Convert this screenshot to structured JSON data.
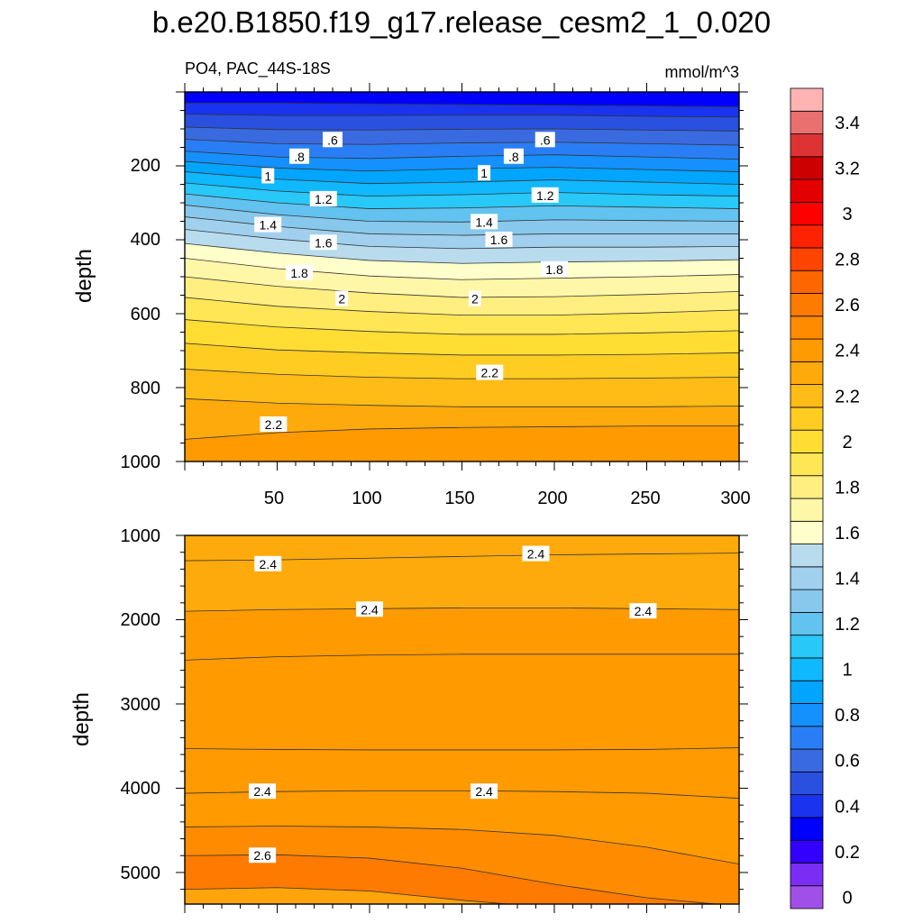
{
  "title": "b.e20.B1850.f19_g17.release_cesm2_1_0.020",
  "subtitle_left": "PO4, PAC_44S-18S",
  "subtitle_right": "mmol/m^3",
  "chart_data": [
    {
      "type": "heatmap",
      "panel": "upper",
      "variable": "PO4",
      "region": "PAC_44S-18S",
      "units": "mmol/m^3",
      "xlabel": "",
      "ylabel": "depth",
      "xlim": [
        0,
        300
      ],
      "ylim": [
        1000,
        0
      ],
      "yticks": [
        200,
        400,
        600,
        800,
        1000
      ],
      "xticks": [
        50,
        100,
        150,
        200,
        250,
        300
      ],
      "contour_depths": [
        {
          "level": 0.4,
          "depths": [
            30,
            30,
            32,
            34,
            36,
            38,
            40
          ]
        },
        {
          "level": 0.5,
          "depths": [
            60,
            64,
            64,
            63,
            63,
            66,
            68
          ]
        },
        {
          "level": 0.6,
          "depths": [
            95,
            102,
            103,
            101,
            100,
            103,
            106
          ]
        },
        {
          "level": 0.7,
          "depths": [
            128,
            140,
            142,
            138,
            136,
            140,
            144
          ]
        },
        {
          "level": 0.8,
          "depths": [
            160,
            176,
            180,
            174,
            170,
            176,
            182
          ]
        },
        {
          "level": 0.9,
          "depths": [
            188,
            206,
            214,
            208,
            204,
            210,
            216
          ]
        },
        {
          "level": 1.0,
          "depths": [
            216,
            236,
            248,
            244,
            238,
            244,
            250
          ]
        },
        {
          "level": 1.1,
          "depths": [
            246,
            268,
            282,
            278,
            272,
            278,
            282
          ]
        },
        {
          "level": 1.2,
          "depths": [
            276,
            300,
            316,
            314,
            308,
            312,
            316
          ]
        },
        {
          "level": 1.3,
          "depths": [
            306,
            332,
            350,
            352,
            346,
            348,
            350
          ]
        },
        {
          "level": 1.4,
          "depths": [
            338,
            364,
            384,
            388,
            384,
            384,
            384
          ]
        },
        {
          "level": 1.5,
          "depths": [
            372,
            398,
            418,
            424,
            420,
            420,
            418
          ]
        },
        {
          "level": 1.6,
          "depths": [
            410,
            436,
            456,
            464,
            460,
            458,
            454
          ]
        },
        {
          "level": 1.7,
          "depths": [
            450,
            478,
            498,
            508,
            504,
            500,
            494
          ]
        },
        {
          "level": 1.8,
          "depths": [
            500,
            526,
            544,
            556,
            554,
            548,
            540
          ]
        },
        {
          "level": 1.9,
          "depths": [
            556,
            580,
            594,
            604,
            604,
            598,
            590
          ]
        },
        {
          "level": 2.0,
          "depths": [
            616,
            636,
            648,
            656,
            656,
            652,
            646
          ]
        },
        {
          "level": 2.1,
          "depths": [
            680,
            698,
            706,
            712,
            712,
            710,
            706
          ]
        },
        {
          "level": 2.2,
          "depths": [
            750,
            764,
            772,
            776,
            776,
            774,
            772
          ]
        },
        {
          "level": 2.3,
          "depths": [
            830,
            842,
            848,
            852,
            852,
            852,
            850
          ]
        },
        {
          "level": 2.4,
          "depths": [
            940,
            922,
            912,
            908,
            906,
            904,
            904
          ]
        },
        {
          "level": 2.5,
          "depths": [
            1010,
            1010,
            1010,
            1010,
            1010,
            1010,
            1010
          ]
        }
      ],
      "contour_x": [
        0,
        50,
        100,
        150,
        200,
        250,
        300
      ],
      "contour_labels": [
        {
          "x": 80,
          "depth": 130,
          "text": ".6"
        },
        {
          "x": 195,
          "depth": 130,
          "text": ".6"
        },
        {
          "x": 62,
          "depth": 175,
          "text": ".8"
        },
        {
          "x": 178,
          "depth": 175,
          "text": ".8"
        },
        {
          "x": 45,
          "depth": 228,
          "text": "1"
        },
        {
          "x": 162,
          "depth": 220,
          "text": "1"
        },
        {
          "x": 75,
          "depth": 290,
          "text": "1.2"
        },
        {
          "x": 195,
          "depth": 280,
          "text": "1.2"
        },
        {
          "x": 45,
          "depth": 360,
          "text": "1.4"
        },
        {
          "x": 162,
          "depth": 352,
          "text": "1.4"
        },
        {
          "x": 75,
          "depth": 408,
          "text": "1.6"
        },
        {
          "x": 170,
          "depth": 400,
          "text": "1.6"
        },
        {
          "x": 62,
          "depth": 490,
          "text": "1.8"
        },
        {
          "x": 200,
          "depth": 480,
          "text": "1.8"
        },
        {
          "x": 85,
          "depth": 560,
          "text": "2"
        },
        {
          "x": 157,
          "depth": 560,
          "text": "2"
        },
        {
          "x": 48,
          "depth": 900,
          "text": "2.2"
        },
        {
          "x": 165,
          "depth": 760,
          "text": "2.2"
        }
      ]
    },
    {
      "type": "heatmap",
      "panel": "lower",
      "variable": "PO4",
      "region": "PAC_44S-18S",
      "units": "mmol/m^3",
      "xlabel": "",
      "ylabel": "depth",
      "xlim": [
        0,
        300
      ],
      "ylim": [
        1000,
        5375
      ],
      "yticks": [
        1000,
        2000,
        3000,
        4000,
        5000
      ],
      "contour_x": [
        0,
        50,
        100,
        150,
        200,
        250,
        300
      ],
      "contour_depths": [
        {
          "level": 2.35,
          "depths": [
            1300,
            1290,
            1270,
            1250,
            1230,
            1220,
            1210
          ]
        },
        {
          "level": 2.4,
          "depths": [
            1900,
            1880,
            1870,
            1860,
            1860,
            1870,
            1880
          ]
        },
        {
          "level": 2.45,
          "depths": [
            2480,
            2440,
            2420,
            2410,
            2410,
            2410,
            2410
          ]
        },
        {
          "level": 2.4,
          "depths": [
            3530,
            3540,
            3545,
            3545,
            3545,
            3540,
            3520
          ]
        },
        {
          "level": 2.45,
          "depths": [
            4060,
            4040,
            4030,
            4030,
            4040,
            4060,
            4120
          ]
        },
        {
          "level": 2.55,
          "depths": [
            4460,
            4450,
            4460,
            4490,
            4560,
            4700,
            4900
          ]
        },
        {
          "level": 2.65,
          "depths": [
            4800,
            4790,
            4830,
            4950,
            5140,
            5300,
            5400
          ]
        },
        {
          "level": 2.75,
          "depths": [
            5200,
            5180,
            5220,
            5330,
            5420,
            5450,
            5450
          ]
        }
      ],
      "contour_labels": [
        {
          "x": 45,
          "depth": 1340,
          "text": "2.4"
        },
        {
          "x": 190,
          "depth": 1220,
          "text": "2.4"
        },
        {
          "x": 100,
          "depth": 1880,
          "text": "2.4"
        },
        {
          "x": 248,
          "depth": 1900,
          "text": "2.4"
        },
        {
          "x": 42,
          "depth": 4040,
          "text": "2.4"
        },
        {
          "x": 162,
          "depth": 4040,
          "text": "2.4"
        },
        {
          "x": 42,
          "depth": 4800,
          "text": "2.6"
        }
      ]
    }
  ],
  "upper_x_tick_labels": [
    "50",
    "100",
    "150",
    "200",
    "250",
    "300"
  ],
  "upper_y_tick_labels": [
    "200",
    "400",
    "600",
    "800",
    "1000"
  ],
  "lower_y_tick_labels": [
    "1000",
    "2000",
    "3000",
    "4000",
    "5000"
  ],
  "upper_ylabel": "depth",
  "lower_ylabel": "depth",
  "colorbar": {
    "levels": [
      0,
      0.1,
      0.2,
      0.3,
      0.4,
      0.5,
      0.6,
      0.7,
      0.8,
      0.9,
      1.0,
      1.1,
      1.2,
      1.3,
      1.4,
      1.5,
      1.6,
      1.7,
      1.8,
      1.9,
      2.0,
      2.1,
      2.2,
      2.3,
      2.4,
      2.5,
      2.6,
      2.7,
      2.8,
      2.9,
      3.0,
      3.1,
      3.2,
      3.3,
      3.4,
      3.5
    ],
    "labels": [
      "0",
      "0.2",
      "0.4",
      "0.6",
      "0.8",
      "1",
      "1.2",
      "1.4",
      "1.6",
      "1.8",
      "2",
      "2.2",
      "2.4",
      "2.6",
      "2.8",
      "3",
      "3.2",
      "3.4"
    ],
    "colors": [
      "#a050e8",
      "#7a2ef5",
      "#3300ff",
      "#0000ff",
      "#1a33ee",
      "#2a50e0",
      "#3a6ae0",
      "#2a7ef5",
      "#1590ff",
      "#00a5ff",
      "#10b8ff",
      "#28c8f8",
      "#62c2f0",
      "#88c8ec",
      "#a0d0ee",
      "#b8dcee",
      "#ffffcc",
      "#fff7a8",
      "#ffee80",
      "#ffe655",
      "#ffdd33",
      "#ffcc22",
      "#ffbb16",
      "#ffaa0c",
      "#ff9a00",
      "#ff8c00",
      "#ff7a00",
      "#ff6600",
      "#ff4500",
      "#ff2200",
      "#ff0000",
      "#e50000",
      "#cc0000",
      "#dd3333",
      "#ea6f6f",
      "#ffb3b3"
    ]
  }
}
